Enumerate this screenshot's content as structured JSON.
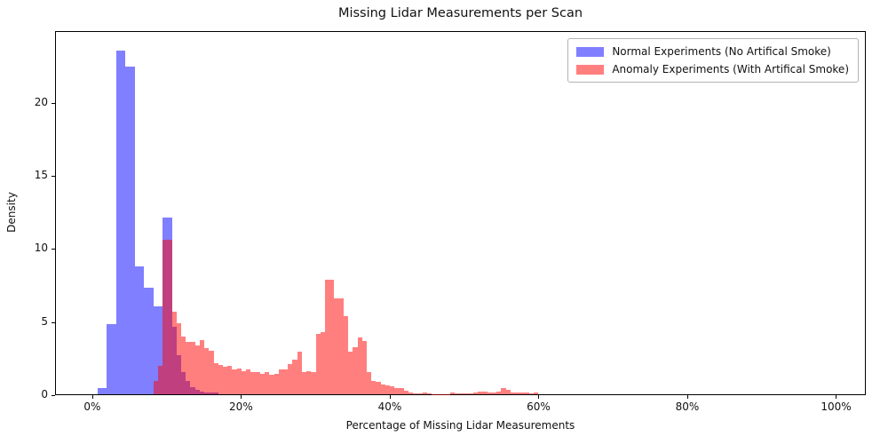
{
  "page": {
    "title": "Missing Lidar Measurements per Scan"
  },
  "axes": {
    "xlabel": "Percentage of Missing Lidar Measurements",
    "ylabel": "Density",
    "x_ticks": [
      {
        "value": 0,
        "label": "0%"
      },
      {
        "value": 20,
        "label": "20%"
      },
      {
        "value": 40,
        "label": "40%"
      },
      {
        "value": 60,
        "label": "60%"
      },
      {
        "value": 80,
        "label": "80%"
      },
      {
        "value": 100,
        "label": "100%"
      }
    ],
    "y_ticks": [
      {
        "value": 0,
        "label": "0"
      },
      {
        "value": 5,
        "label": "5"
      },
      {
        "value": 10,
        "label": "10"
      },
      {
        "value": 15,
        "label": "15"
      },
      {
        "value": 20,
        "label": "20"
      }
    ]
  },
  "legend": {
    "entries": [
      {
        "label": "Normal Experiments (No Artifical Smoke)",
        "swatch_color": "rgba(0,0,255,0.5)"
      },
      {
        "label": "Anomaly Experiments (With Artifical Smoke)",
        "swatch_color": "rgba(255,0,0,0.5)"
      }
    ]
  },
  "chart_data": {
    "type": "bar",
    "subtype": "overlaid-density-histogram",
    "title": "Missing Lidar Measurements per Scan",
    "xlabel": "Percentage of Missing Lidar Measurements",
    "ylabel": "Density",
    "xlim": [
      -5,
      104
    ],
    "ylim": [
      0,
      24.9
    ],
    "grid": false,
    "legend_position": "upper right",
    "bin_width_pct": 0.625,
    "series": [
      {
        "name": "Normal Experiments (No Artifical Smoke)",
        "color": "rgba(0,0,255,0.5)",
        "bin_start_pct": 0.625,
        "densities": [
          0.45,
          0.45,
          4.85,
          4.85,
          23.6,
          23.6,
          22.55,
          22.55,
          8.8,
          8.8,
          7.35,
          7.35,
          6.05,
          6.05,
          12.15,
          12.15,
          4.65,
          2.7,
          1.5,
          0.9,
          0.5,
          0.3,
          0.2,
          0.15,
          0.1,
          0.1
        ]
      },
      {
        "name": "Anomaly Experiments (With Artifical Smoke)",
        "color": "rgba(255,0,0,0.5)",
        "bin_start_pct": 8.125,
        "densities": [
          0.9,
          1.95,
          10.6,
          10.6,
          5.65,
          4.9,
          3.95,
          3.6,
          3.6,
          3.35,
          3.7,
          3.15,
          3.0,
          2.15,
          2.0,
          1.9,
          1.95,
          1.7,
          1.8,
          1.6,
          1.7,
          1.5,
          1.55,
          1.4,
          1.5,
          1.35,
          1.4,
          1.7,
          1.7,
          2.1,
          2.4,
          2.9,
          1.5,
          1.6,
          1.55,
          4.15,
          4.25,
          7.9,
          7.85,
          6.6,
          6.6,
          5.35,
          2.95,
          3.25,
          3.9,
          3.65,
          1.5,
          0.9,
          0.85,
          0.7,
          0.6,
          0.55,
          0.4,
          0.4,
          0.25,
          0.15,
          0.08,
          0.05,
          0.15,
          0.05,
          0.03,
          0.03,
          0.03,
          0.03,
          0.12,
          0.05,
          0.05,
          0.05,
          0.05,
          0.15,
          0.2,
          0.2,
          0.15,
          0.15,
          0.2,
          0.45,
          0.3,
          0.15,
          0.15,
          0.1,
          0.1,
          0.05,
          0.1
        ]
      }
    ]
  }
}
